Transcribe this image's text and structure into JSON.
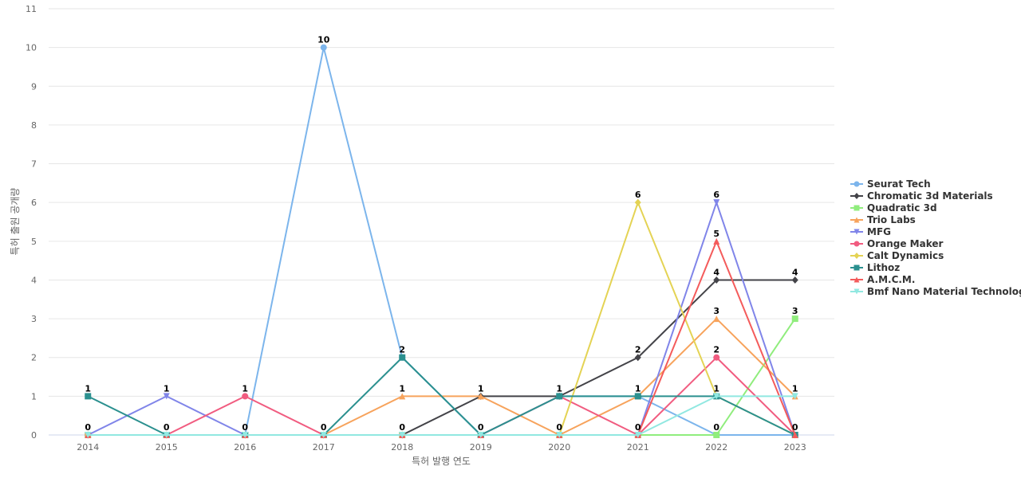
{
  "chart_data": {
    "type": "line",
    "x": [
      "2014",
      "2015",
      "2016",
      "2017",
      "2018",
      "2019",
      "2020",
      "2021",
      "2022",
      "2023"
    ],
    "xlabel": "특허 발행 연도",
    "ylabel": "특허 출원 공개량",
    "ylim": [
      0,
      11
    ],
    "yticks": [
      0,
      1,
      2,
      3,
      4,
      5,
      6,
      7,
      8,
      9,
      10,
      11
    ],
    "grid": true,
    "legend_position": "right",
    "series": [
      {
        "name": "Seurat Tech",
        "values": [
          0,
          0,
          0,
          10,
          2,
          0,
          1,
          1,
          0,
          0
        ],
        "color": "#7cb5ec",
        "marker": "circle"
      },
      {
        "name": "Chromatic 3d Materials",
        "values": [
          0,
          0,
          0,
          0,
          0,
          1,
          1,
          2,
          4,
          4
        ],
        "color": "#434348",
        "marker": "diamond"
      },
      {
        "name": "Quadratic 3d",
        "values": [
          0,
          0,
          0,
          0,
          0,
          0,
          0,
          0,
          0,
          3
        ],
        "color": "#90ed7d",
        "marker": "square"
      },
      {
        "name": "Trio Labs",
        "values": [
          0,
          0,
          0,
          0,
          1,
          1,
          0,
          1,
          3,
          1
        ],
        "color": "#f7a35c",
        "marker": "triangle"
      },
      {
        "name": "MFG",
        "values": [
          0,
          1,
          0,
          0,
          0,
          0,
          0,
          0,
          6,
          0
        ],
        "color": "#8085e9",
        "marker": "triangle-down"
      },
      {
        "name": "Orange Maker",
        "values": [
          0,
          0,
          1,
          0,
          0,
          0,
          1,
          0,
          2,
          0
        ],
        "color": "#f15c80",
        "marker": "circle"
      },
      {
        "name": "Calt Dynamics",
        "values": [
          0,
          0,
          0,
          0,
          0,
          0,
          0,
          6,
          1,
          0
        ],
        "color": "#e4d354",
        "marker": "diamond"
      },
      {
        "name": "Lithoz",
        "values": [
          1,
          0,
          0,
          0,
          2,
          0,
          1,
          1,
          1,
          0
        ],
        "color": "#2b908f",
        "marker": "square"
      },
      {
        "name": "A.M.C.M.",
        "values": [
          0,
          0,
          0,
          0,
          0,
          0,
          0,
          0,
          5,
          0
        ],
        "color": "#f45b5b",
        "marker": "triangle"
      },
      {
        "name": "Bmf Nano Material Technology",
        "values": [
          0,
          0,
          0,
          0,
          0,
          0,
          0,
          0,
          1,
          1
        ],
        "color": "#91e8e1",
        "marker": "triangle-down"
      }
    ],
    "data_labels": [
      {
        "x": "2014",
        "texts": [
          "1",
          "0"
        ]
      },
      {
        "x": "2015",
        "texts": [
          "1",
          "0"
        ]
      },
      {
        "x": "2016",
        "texts": [
          "1",
          "0"
        ]
      },
      {
        "x": "2017",
        "texts": [
          "10",
          "0"
        ]
      },
      {
        "x": "2018",
        "texts": [
          "2",
          "1",
          "0"
        ]
      },
      {
        "x": "2019",
        "texts": [
          "1",
          "0"
        ]
      },
      {
        "x": "2020",
        "texts": [
          "1",
          "0"
        ]
      },
      {
        "x": "2021",
        "texts": [
          "6",
          "2",
          "1",
          "0"
        ]
      },
      {
        "x": "2022",
        "texts": [
          "6",
          "5",
          "4",
          "3",
          "2",
          "1",
          "0"
        ]
      },
      {
        "x": "2023",
        "texts": [
          "4",
          "3",
          "1",
          "0"
        ]
      }
    ]
  }
}
